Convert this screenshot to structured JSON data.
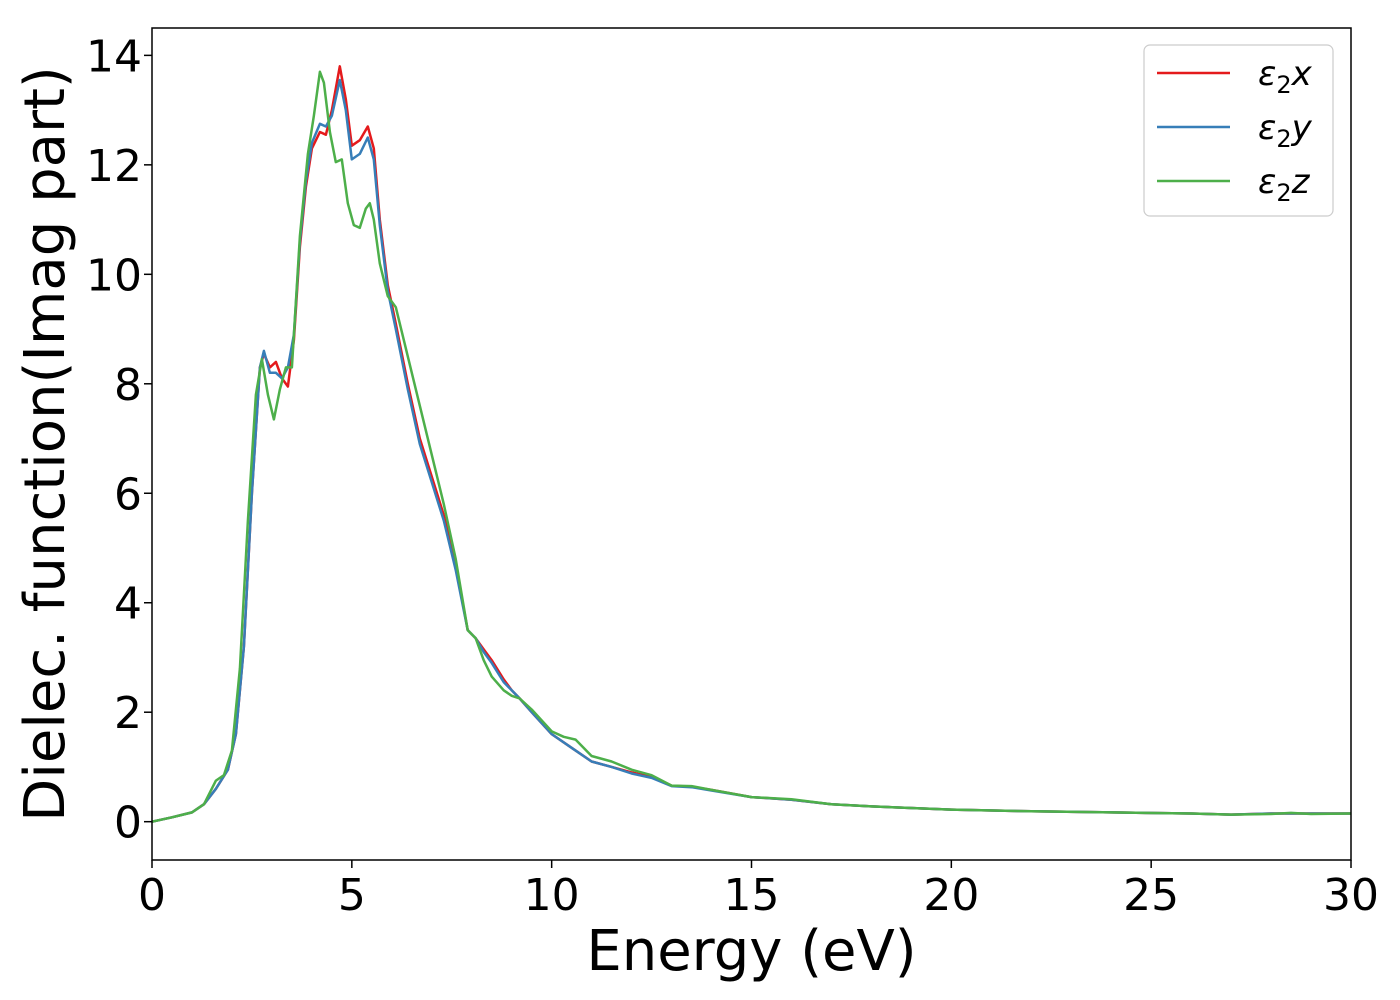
{
  "chart_data": {
    "type": "line",
    "xlabel": "Energy (eV)",
    "ylabel": "Dielec. function(Imag part)",
    "xlim": [
      0,
      30
    ],
    "ylim": [
      -0.7,
      14.5
    ],
    "xticks": [
      0,
      5,
      10,
      15,
      20,
      25,
      30
    ],
    "yticks": [
      0,
      2,
      4,
      6,
      8,
      10,
      12,
      14
    ],
    "grid": false,
    "legend_position": "top-right",
    "series": [
      {
        "name": "ε₂x",
        "legend_base": "ε",
        "legend_sub": "2",
        "legend_var": "x",
        "color": "#e41a1c",
        "x": [
          0,
          0.5,
          1.0,
          1.3,
          1.6,
          1.9,
          2.1,
          2.3,
          2.5,
          2.7,
          2.8,
          2.95,
          3.1,
          3.25,
          3.4,
          3.55,
          3.7,
          3.85,
          4.0,
          4.2,
          4.35,
          4.5,
          4.7,
          4.85,
          5.0,
          5.2,
          5.4,
          5.55,
          5.7,
          5.9,
          6.1,
          6.4,
          6.7,
          7.0,
          7.3,
          7.6,
          7.9,
          8.1,
          8.3,
          8.5,
          8.8,
          9.0,
          9.2,
          9.5,
          10.0,
          10.5,
          11.0,
          11.5,
          12.0,
          12.5,
          13.0,
          13.5,
          14.0,
          15.0,
          16.0,
          17.0,
          18.0,
          20.0,
          22.0,
          24.0,
          26.0,
          27.0,
          28.0,
          28.5,
          29.0,
          30.0
        ],
        "values": [
          0.0,
          0.08,
          0.17,
          0.32,
          0.6,
          0.95,
          1.6,
          3.2,
          6.0,
          8.3,
          8.55,
          8.3,
          8.4,
          8.1,
          7.95,
          8.8,
          10.5,
          11.6,
          12.3,
          12.6,
          12.55,
          13.0,
          13.8,
          13.2,
          12.35,
          12.45,
          12.7,
          12.3,
          11.0,
          9.8,
          9.1,
          8.0,
          7.0,
          6.3,
          5.6,
          4.7,
          3.5,
          3.35,
          3.15,
          2.95,
          2.6,
          2.4,
          2.25,
          2.0,
          1.6,
          1.35,
          1.1,
          1.0,
          0.9,
          0.82,
          0.66,
          0.64,
          0.58,
          0.45,
          0.4,
          0.32,
          0.28,
          0.22,
          0.19,
          0.17,
          0.15,
          0.13,
          0.15,
          0.15,
          0.15,
          0.15
        ]
      },
      {
        "name": "ε₂y",
        "legend_base": "ε",
        "legend_sub": "2",
        "legend_var": "y",
        "color": "#377eb8",
        "x": [
          0,
          0.5,
          1.0,
          1.3,
          1.6,
          1.9,
          2.1,
          2.3,
          2.5,
          2.7,
          2.8,
          2.95,
          3.1,
          3.25,
          3.4,
          3.55,
          3.7,
          3.85,
          4.0,
          4.2,
          4.35,
          4.5,
          4.7,
          4.85,
          5.0,
          5.2,
          5.4,
          5.55,
          5.7,
          5.9,
          6.1,
          6.4,
          6.7,
          7.0,
          7.3,
          7.6,
          7.9,
          8.1,
          8.3,
          8.5,
          8.8,
          9.0,
          9.2,
          9.5,
          10.0,
          10.5,
          11.0,
          11.5,
          12.0,
          12.5,
          13.0,
          13.5,
          14.0,
          15.0,
          16.0,
          17.0,
          18.0,
          20.0,
          22.0,
          24.0,
          26.0,
          27.0,
          28.0,
          28.5,
          29.0,
          30.0
        ],
        "values": [
          0.0,
          0.08,
          0.17,
          0.32,
          0.6,
          0.95,
          1.6,
          3.2,
          6.0,
          8.3,
          8.6,
          8.2,
          8.2,
          8.1,
          8.3,
          8.9,
          10.6,
          11.7,
          12.4,
          12.75,
          12.7,
          12.9,
          13.55,
          13.0,
          12.1,
          12.2,
          12.5,
          12.1,
          10.9,
          9.7,
          9.0,
          7.9,
          6.9,
          6.2,
          5.5,
          4.6,
          3.5,
          3.35,
          3.1,
          2.9,
          2.55,
          2.4,
          2.25,
          2.0,
          1.6,
          1.35,
          1.1,
          1.0,
          0.88,
          0.8,
          0.65,
          0.63,
          0.57,
          0.45,
          0.4,
          0.32,
          0.28,
          0.22,
          0.19,
          0.17,
          0.15,
          0.13,
          0.15,
          0.15,
          0.15,
          0.15
        ]
      },
      {
        "name": "ε₂z",
        "legend_base": "ε",
        "legend_sub": "2",
        "legend_var": "z",
        "color": "#4daf4a",
        "x": [
          0,
          0.5,
          1.0,
          1.3,
          1.6,
          1.8,
          2.0,
          2.2,
          2.4,
          2.6,
          2.75,
          2.9,
          3.05,
          3.2,
          3.35,
          3.5,
          3.7,
          3.9,
          4.05,
          4.2,
          4.3,
          4.45,
          4.6,
          4.75,
          4.9,
          5.05,
          5.2,
          5.35,
          5.45,
          5.55,
          5.7,
          5.9,
          6.1,
          6.4,
          6.7,
          7.0,
          7.3,
          7.6,
          7.9,
          8.1,
          8.3,
          8.5,
          8.8,
          9.0,
          9.2,
          9.5,
          10.0,
          10.3,
          10.6,
          11.0,
          11.5,
          12.0,
          12.5,
          13.0,
          13.5,
          14.0,
          15.0,
          16.0,
          17.0,
          18.0,
          20.0,
          22.0,
          24.0,
          26.0,
          27.0,
          28.0,
          28.5,
          29.0,
          30.0
        ],
        "values": [
          0.0,
          0.08,
          0.17,
          0.32,
          0.75,
          0.85,
          1.3,
          2.8,
          5.5,
          7.8,
          8.45,
          7.8,
          7.35,
          7.9,
          8.3,
          8.3,
          10.7,
          12.2,
          12.9,
          13.7,
          13.5,
          12.6,
          12.05,
          12.1,
          11.3,
          10.9,
          10.85,
          11.2,
          11.3,
          11.0,
          10.2,
          9.6,
          9.4,
          8.5,
          7.6,
          6.7,
          5.8,
          4.8,
          3.5,
          3.35,
          2.95,
          2.65,
          2.4,
          2.3,
          2.25,
          2.05,
          1.65,
          1.55,
          1.5,
          1.2,
          1.1,
          0.95,
          0.85,
          0.66,
          0.65,
          0.58,
          0.45,
          0.41,
          0.32,
          0.28,
          0.22,
          0.19,
          0.17,
          0.15,
          0.13,
          0.14,
          0.16,
          0.14,
          0.15
        ]
      }
    ]
  }
}
